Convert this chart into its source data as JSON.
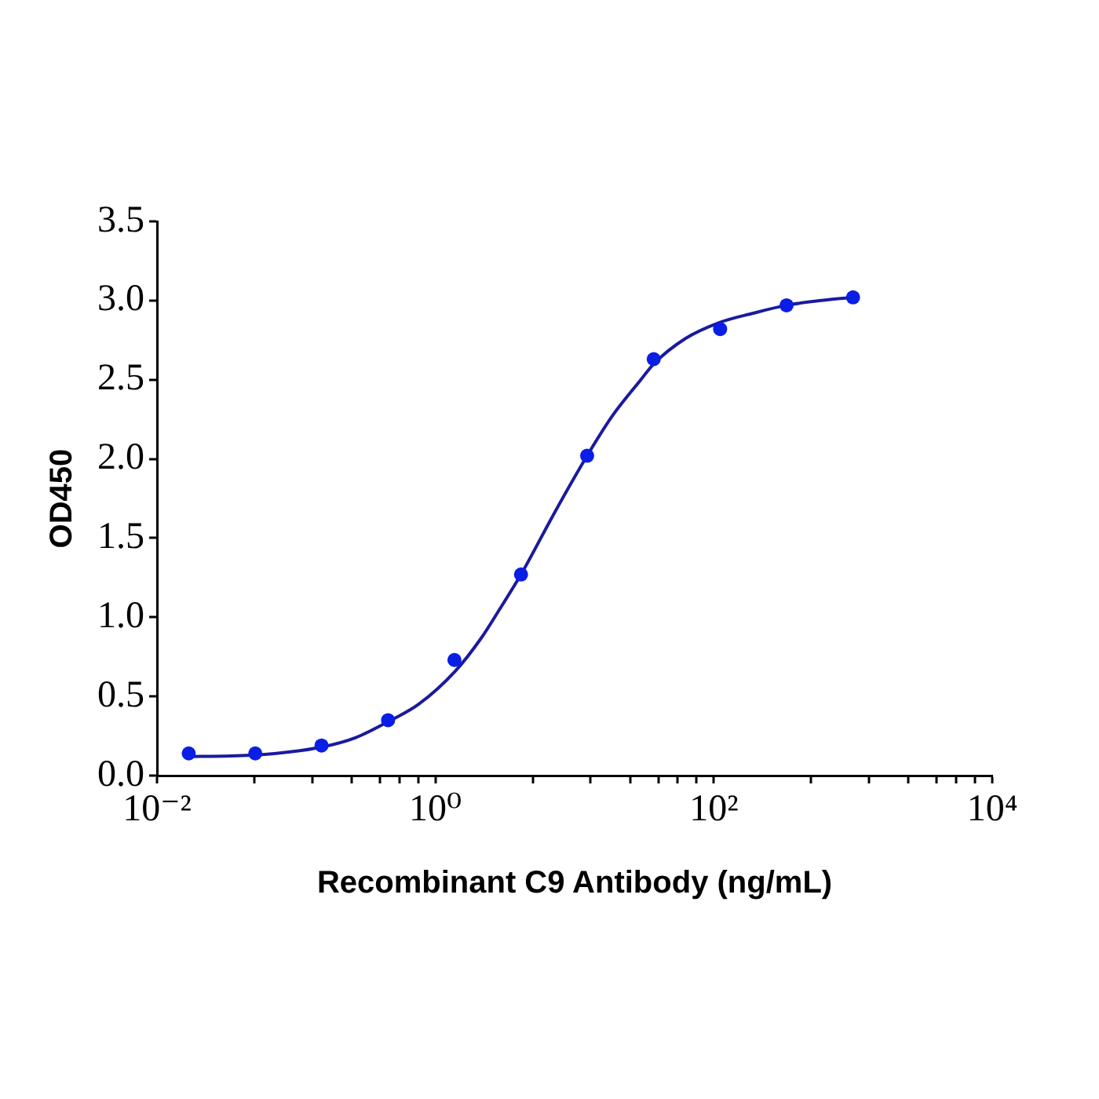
{
  "chart_data": {
    "type": "scatter",
    "xlabel": "Recombinant C9 Antibody (ng/mL)",
    "ylabel": "OD450",
    "log": "x",
    "grid": false,
    "legend": false,
    "marker": "circle",
    "xlim": [
      0.01,
      10000
    ],
    "xticks": [
      {
        "value": 0.01,
        "label": "10⁻²"
      },
      {
        "value": 0.05,
        "label": null
      },
      {
        "value": 0.13,
        "label": null
      },
      {
        "value": 0.25,
        "label": null
      },
      {
        "value": 0.4,
        "label": null
      },
      {
        "value": 0.55,
        "label": null
      },
      {
        "value": 0.75,
        "label": null
      },
      {
        "value": 1,
        "label": "10⁰"
      },
      {
        "value": 5,
        "label": null
      },
      {
        "value": 13,
        "label": null
      },
      {
        "value": 25,
        "label": null
      },
      {
        "value": 40,
        "label": null
      },
      {
        "value": 55,
        "label": null
      },
      {
        "value": 75,
        "label": null
      },
      {
        "value": 100,
        "label": "10²"
      },
      {
        "value": 500,
        "label": null
      },
      {
        "value": 1300,
        "label": null
      },
      {
        "value": 2500,
        "label": null
      },
      {
        "value": 4000,
        "label": null
      },
      {
        "value": 5500,
        "label": null
      },
      {
        "value": 7500,
        "label": null
      },
      {
        "value": 10000,
        "label": "10⁴"
      }
    ],
    "ylim": [
      0,
      3.5
    ],
    "yticks": [
      {
        "value": 0,
        "label": "0.0"
      },
      {
        "value": 0.5,
        "label": "0.5"
      },
      {
        "value": 1,
        "label": "1.0"
      },
      {
        "value": 1.5,
        "label": "1.5"
      },
      {
        "value": 2,
        "label": "2.0"
      },
      {
        "value": 2.5,
        "label": "2.5"
      },
      {
        "value": 3,
        "label": "3.0"
      },
      {
        "value": 3.5,
        "label": "3.5"
      }
    ],
    "series": [
      {
        "type": "line",
        "marker": "none",
        "line_style": "solid",
        "color": "#1a1a9e",
        "x": [
          0.0169,
          0.0508,
          0.152,
          0.268,
          0.457,
          0.757,
          1.39,
          2.14,
          2.89,
          4.12,
          7.17,
          12.3,
          18.6,
          29.9,
          37,
          62.5,
          109,
          192,
          333,
          592,
          1000
        ],
        "values": [
          0.12,
          0.13,
          0.18,
          0.24,
          0.34,
          0.45,
          0.66,
          0.87,
          1.05,
          1.27,
          1.66,
          2.02,
          2.27,
          2.5,
          2.6,
          2.76,
          2.86,
          2.92,
          2.97,
          3.0,
          3.02
        ]
      },
      {
        "type": "scatter",
        "color": "#0a1ee6",
        "x": [
          0.0169,
          0.0508,
          0.152,
          0.457,
          1.37,
          4.12,
          12.3,
          37,
          111,
          333,
          1000
        ],
        "values": [
          0.14,
          0.14,
          0.19,
          0.35,
          0.73,
          1.27,
          2.02,
          2.63,
          2.82,
          2.97,
          3.02
        ]
      }
    ]
  }
}
